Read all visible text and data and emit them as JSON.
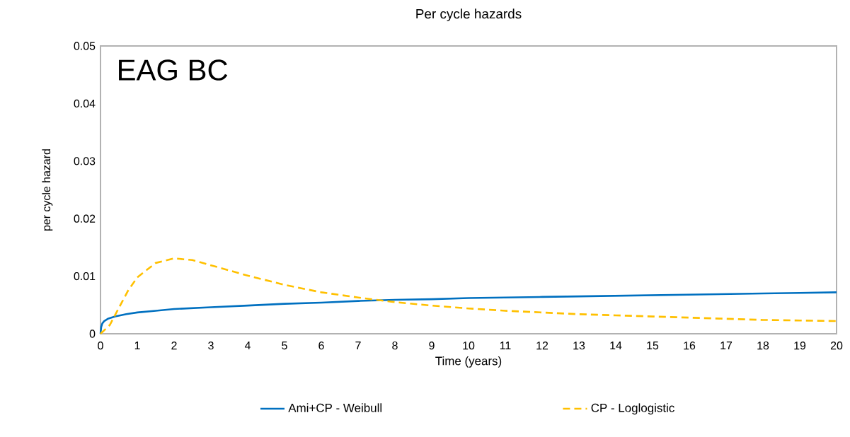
{
  "chart_data": {
    "type": "line",
    "title": "Per cycle hazards",
    "xlabel": "Time (years)",
    "ylabel": "per cycle hazard",
    "annotations": [
      "EAG BC"
    ],
    "xlim": [
      0,
      20
    ],
    "xticks": [
      0,
      1,
      2,
      3,
      4,
      5,
      6,
      7,
      8,
      9,
      10,
      11,
      12,
      13,
      14,
      15,
      16,
      17,
      18,
      19,
      20
    ],
    "ylim": [
      0,
      0.05
    ],
    "yticks": [
      0,
      0.01,
      0.02,
      0.03,
      0.04,
      0.05
    ],
    "grid": false,
    "legend": "bottom",
    "marker": "none",
    "series": [
      {
        "name": "Ami+CP - Weibull",
        "color": "#0070c0",
        "line_style": "solid",
        "x": [
          0,
          0.02,
          0.05,
          0.1,
          0.2,
          0.4,
          0.7,
          1,
          1.5,
          2,
          3,
          4,
          5,
          6,
          7,
          8,
          9,
          10,
          11,
          12,
          13,
          14,
          15,
          16,
          17,
          18,
          19,
          20
        ],
        "values": [
          0,
          0.0012,
          0.0018,
          0.0022,
          0.0026,
          0.003,
          0.0034,
          0.0037,
          0.004,
          0.0043,
          0.0046,
          0.0049,
          0.0052,
          0.0054,
          0.0057,
          0.0059,
          0.006,
          0.0062,
          0.0063,
          0.0064,
          0.0065,
          0.0066,
          0.0067,
          0.0068,
          0.0069,
          0.007,
          0.0071,
          0.0072
        ]
      },
      {
        "name": "CP - Loglogistic",
        "color": "#ffc000",
        "line_style": "dashed",
        "x": [
          0,
          0.25,
          0.5,
          0.75,
          1,
          1.5,
          2,
          2.5,
          3,
          4,
          5,
          6,
          7,
          7.5,
          8,
          9,
          10,
          11,
          12,
          13,
          14,
          15,
          16,
          17,
          18,
          19,
          20
        ],
        "values": [
          0,
          0.0015,
          0.0045,
          0.0075,
          0.0098,
          0.0123,
          0.0131,
          0.0128,
          0.0119,
          0.0101,
          0.0085,
          0.0072,
          0.0063,
          0.0059,
          0.0055,
          0.0049,
          0.0044,
          0.004,
          0.0037,
          0.0034,
          0.0032,
          0.003,
          0.0028,
          0.0026,
          0.0024,
          0.0023,
          0.0022
        ]
      }
    ]
  }
}
